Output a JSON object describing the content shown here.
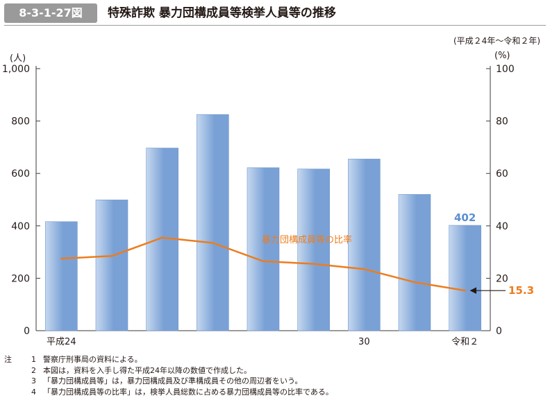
{
  "figure": {
    "number": "8-3-1-27図",
    "title": "特殊詐欺 暴力団構成員等検挙人員等の推移",
    "period": "(平成２4年～令和２年)"
  },
  "chart_data": {
    "type": "bar",
    "categories": [
      "平成24",
      "",
      "",
      "",
      "",
      "",
      "30",
      "",
      "令和２"
    ],
    "series": [
      {
        "type": "bar",
        "axis": "left",
        "values": [
          416,
          499,
          697,
          825,
          622,
          617,
          655,
          520,
          402
        ]
      },
      {
        "type": "line",
        "axis": "right",
        "name": "暴力団構成員等の比率",
        "values": [
          27.5,
          28.5,
          35.5,
          33.5,
          26.5,
          25.5,
          23.5,
          18.5,
          15.3
        ]
      }
    ],
    "y_left": {
      "unit": "(人)",
      "range": [
        0,
        1000
      ],
      "ticks": [
        "0",
        "200",
        "400",
        "600",
        "800",
        "1,000"
      ]
    },
    "y_right": {
      "unit": "(%)",
      "range": [
        0,
        100
      ],
      "ticks": [
        "0",
        "20",
        "40",
        "60",
        "80",
        "100"
      ]
    },
    "annotations": {
      "last_bar_label": "402",
      "last_ratio_label": "15.3"
    },
    "colors": {
      "bar_light": "#c5d8ef",
      "bar_dark": "#7aa1d6",
      "line": "#ed7c1d",
      "bar_label": "#5b8fd0",
      "axis": "#3a3a3a"
    }
  },
  "notes": [
    {
      "head": "注",
      "num": "1",
      "text": "警察庁刑事局の資料による。"
    },
    {
      "head": "",
      "num": "2",
      "text": "本図は，資料を入手し得た平成24年以降の数値で作成した。"
    },
    {
      "head": "",
      "num": "3",
      "text": "「暴力団構成員等」は，暴力団構成員及び準構成員その他の周辺者をいう。"
    },
    {
      "head": "",
      "num": "4",
      "text": "「暴力団構成員等の比率」は，検挙人員総数に占める暴力団構成員等の比率である。"
    }
  ]
}
